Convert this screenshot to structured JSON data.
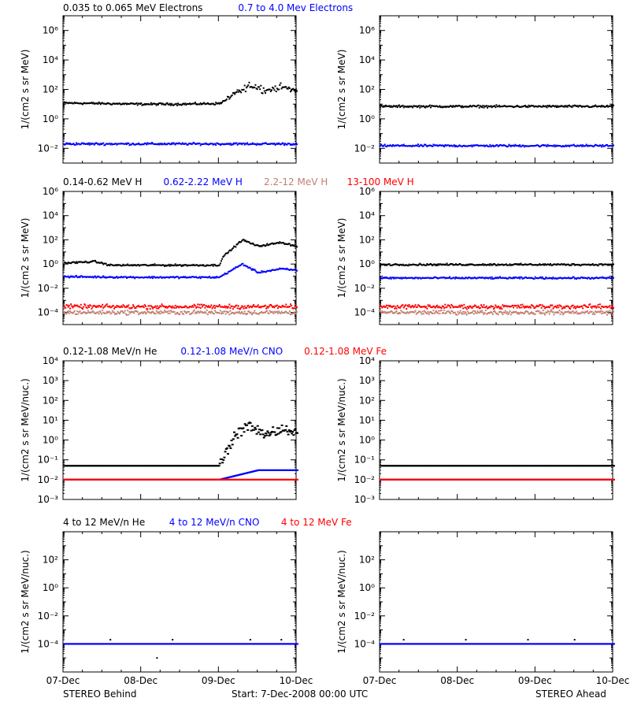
{
  "rows": [
    {
      "titles": [
        {
          "text": "0.035 to 0.065 MeV Electrons",
          "color": "#000000"
        },
        {
          "text": "0.7 to 4.0 Mev Electrons",
          "color": "#0000ff"
        }
      ]
    },
    {
      "titles": [
        {
          "text": "0.14-0.62 MeV H",
          "color": "#000000"
        },
        {
          "text": "0.62-2.22 MeV H",
          "color": "#0000ff"
        },
        {
          "text": "2.2-12 MeV H",
          "color": "#c08070"
        },
        {
          "text": "13-100 MeV H",
          "color": "#ff0000"
        }
      ]
    },
    {
      "titles": [
        {
          "text": "0.12-1.08 MeV/n He",
          "color": "#000000"
        },
        {
          "text": "0.12-1.08 MeV/n CNO",
          "color": "#0000ff"
        },
        {
          "text": "0.12-1.08 MeV Fe",
          "color": "#ff0000"
        }
      ]
    },
    {
      "titles": [
        {
          "text": "4 to 12 MeV/n He",
          "color": "#000000"
        },
        {
          "text": "4 to 12 MeV/n CNO",
          "color": "#0000ff"
        },
        {
          "text": "4 to 12 MeV Fe",
          "color": "#ff0000"
        }
      ]
    }
  ],
  "x_ticks": [
    "07-Dec",
    "08-Dec",
    "09-Dec",
    "10-Dec"
  ],
  "footer": {
    "left": "STEREO Behind",
    "center": "Start:  7-Dec-2008 00:00 UTC",
    "right": "STEREO Ahead"
  },
  "chart_data": [
    {
      "type": "scatter",
      "panel": "behind-electrons",
      "ylabel": "1/(cm2 s sr MeV)",
      "yscale": "log",
      "ylim": [
        0.001,
        10000000
      ],
      "x": [
        "07-Dec",
        "08-Dec",
        "09-Dec",
        "10-Dec"
      ],
      "series": [
        {
          "name": "0.035 to 0.065 MeV Electrons",
          "color": "#000000",
          "x": [
            0,
            0.5,
            1,
            1.5,
            2,
            2.1,
            2.4,
            2.6,
            2.8,
            3
          ],
          "y": [
            12,
            11,
            10,
            10,
            11,
            20,
            200,
            90,
            150,
            80
          ]
        },
        {
          "name": "0.7 to 4.0 Mev Electrons",
          "color": "#0000ff",
          "x": [
            0,
            1,
            2,
            3
          ],
          "y": [
            0.02,
            0.02,
            0.02,
            0.02
          ]
        }
      ]
    },
    {
      "type": "scatter",
      "panel": "ahead-electrons",
      "ylabel": "1/(cm2 s sr MeV)",
      "yscale": "log",
      "ylim": [
        0.001,
        10000000
      ],
      "x": [
        "07-Dec",
        "08-Dec",
        "09-Dec",
        "10-Dec"
      ],
      "series": [
        {
          "name": "0.035 to 0.065 MeV Electrons",
          "color": "#000000",
          "x": [
            0,
            1,
            2,
            3
          ],
          "y": [
            7,
            7,
            7,
            7
          ]
        },
        {
          "name": "0.7 to 4.0 Mev Electrons",
          "color": "#0000ff",
          "x": [
            0,
            1,
            2,
            3
          ],
          "y": [
            0.015,
            0.015,
            0.015,
            0.015
          ]
        }
      ]
    },
    {
      "type": "scatter",
      "panel": "behind-protons",
      "ylabel": "1/(cm2 s sr MeV)",
      "yscale": "log",
      "ylim": [
        1e-05,
        1000000
      ],
      "x": [
        "07-Dec",
        "08-Dec",
        "09-Dec",
        "10-Dec"
      ],
      "series": [
        {
          "name": "0.14-0.62 MeV H",
          "color": "#000000",
          "x": [
            0,
            0.4,
            0.6,
            1,
            1.5,
            2,
            2.05,
            2.3,
            2.5,
            2.8,
            3
          ],
          "y": [
            1.2,
            1.6,
            0.8,
            0.8,
            0.8,
            0.8,
            4,
            100,
            30,
            60,
            30
          ]
        },
        {
          "name": "0.62-2.22 MeV H",
          "color": "#0000ff",
          "x": [
            0,
            1,
            2,
            2.3,
            2.5,
            2.8,
            3
          ],
          "y": [
            0.09,
            0.08,
            0.08,
            1,
            0.2,
            0.4,
            0.3
          ]
        },
        {
          "name": "2.2-12 MeV H",
          "color": "#c08070",
          "x": [
            0,
            1,
            2,
            3
          ],
          "y": [
            0.0001,
            0.0001,
            0.0001,
            0.0001
          ]
        },
        {
          "name": "13-100 MeV H",
          "color": "#ff0000",
          "x": [
            0,
            1,
            2,
            3
          ],
          "y": [
            0.0003,
            0.0003,
            0.0003,
            0.0003
          ]
        }
      ]
    },
    {
      "type": "scatter",
      "panel": "ahead-protons",
      "ylabel": "1/(cm2 s sr MeV)",
      "yscale": "log",
      "ylim": [
        1e-05,
        1000000
      ],
      "x": [
        "07-Dec",
        "08-Dec",
        "09-Dec",
        "10-Dec"
      ],
      "series": [
        {
          "name": "0.14-0.62 MeV H",
          "color": "#000000",
          "x": [
            0,
            1,
            2,
            3
          ],
          "y": [
            0.9,
            0.9,
            0.9,
            0.9
          ]
        },
        {
          "name": "0.62-2.22 MeV H",
          "color": "#0000ff",
          "x": [
            0,
            1,
            2,
            3
          ],
          "y": [
            0.07,
            0.07,
            0.07,
            0.07
          ]
        },
        {
          "name": "2.2-12 MeV H",
          "color": "#c08070",
          "x": [
            0,
            1,
            2,
            3
          ],
          "y": [
            0.0001,
            0.0001,
            0.0001,
            0.0001
          ]
        },
        {
          "name": "13-100 MeV H",
          "color": "#ff0000",
          "x": [
            0,
            1,
            2,
            3
          ],
          "y": [
            0.0003,
            0.0003,
            0.0003,
            0.0003
          ]
        }
      ]
    },
    {
      "type": "scatter",
      "panel": "behind-low-ions",
      "ylabel": "1/(cm2 s sr MeV/nuc.)",
      "yscale": "log",
      "ylim": [
        0.001,
        10000
      ],
      "x": [
        "07-Dec",
        "08-Dec",
        "09-Dec",
        "10-Dec"
      ],
      "series": [
        {
          "name": "0.12-1.08 MeV/n He",
          "color": "#000000",
          "x": [
            0,
            1,
            2,
            2.2,
            2.4,
            2.6,
            2.8,
            3
          ],
          "y": [
            0.05,
            0.05,
            0.05,
            2,
            5,
            2,
            3,
            3
          ]
        },
        {
          "name": "0.12-1.08 MeV/n CNO",
          "color": "#0000ff",
          "x": [
            0,
            1,
            2,
            2.5,
            3
          ],
          "y": [
            0.01,
            0.01,
            0.01,
            0.03,
            0.03
          ]
        },
        {
          "name": "0.12-1.08 MeV Fe",
          "color": "#ff0000",
          "x": [
            0,
            1,
            2,
            3
          ],
          "y": [
            0.01,
            0.01,
            0.01,
            0.01
          ]
        }
      ]
    },
    {
      "type": "scatter",
      "panel": "ahead-low-ions",
      "ylabel": "1/(cm2 s sr MeV/nuc.)",
      "yscale": "log",
      "ylim": [
        0.001,
        10000
      ],
      "x": [
        "07-Dec",
        "08-Dec",
        "09-Dec",
        "10-Dec"
      ],
      "series": [
        {
          "name": "0.12-1.08 MeV/n He",
          "color": "#000000",
          "x": [
            0,
            1,
            2,
            3
          ],
          "y": [
            0.05,
            0.05,
            0.05,
            0.05
          ]
        },
        {
          "name": "0.12-1.08 MeV/n CNO",
          "color": "#0000ff",
          "x": [
            0,
            1,
            2,
            3
          ],
          "y": [
            0.01,
            0.01,
            0.01,
            0.01
          ]
        },
        {
          "name": "0.12-1.08 MeV Fe",
          "color": "#ff0000",
          "x": [
            0,
            1,
            2,
            3
          ],
          "y": [
            0.01,
            0.01,
            0.01,
            0.01
          ]
        }
      ]
    },
    {
      "type": "scatter",
      "panel": "behind-high-ions",
      "ylabel": "1/(cm2 s sr MeV/nuc.)",
      "yscale": "log",
      "ylim": [
        1e-06,
        10000
      ],
      "x": [
        "07-Dec",
        "08-Dec",
        "09-Dec",
        "10-Dec"
      ],
      "series": [
        {
          "name": "4 to 12 MeV/n He",
          "color": "#000000",
          "x": [
            0.6,
            1.2,
            1.4,
            2.4,
            2.8
          ],
          "y": [
            0.0002,
            1e-05,
            0.0002,
            0.0002,
            0.0002
          ]
        },
        {
          "name": "4 to 12 MeV/n CNO",
          "color": "#0000ff",
          "x": [
            0,
            1,
            2,
            3
          ],
          "y": [
            0.0001,
            0.0001,
            0.0001,
            0.0001
          ]
        },
        {
          "name": "4 to 12 MeV Fe",
          "color": "#ff0000",
          "x": [],
          "y": []
        }
      ]
    },
    {
      "type": "scatter",
      "panel": "ahead-high-ions",
      "ylabel": "1/(cm2 s sr MeV/nuc.)",
      "yscale": "log",
      "ylim": [
        1e-06,
        10000
      ],
      "x": [
        "07-Dec",
        "08-Dec",
        "09-Dec",
        "10-Dec"
      ],
      "series": [
        {
          "name": "4 to 12 MeV/n He",
          "color": "#000000",
          "x": [
            0.3,
            1.1,
            1.9,
            2.5
          ],
          "y": [
            0.0002,
            0.0002,
            0.0002,
            0.0002
          ]
        },
        {
          "name": "4 to 12 MeV/n CNO",
          "color": "#0000ff",
          "x": [
            0,
            1,
            2,
            3
          ],
          "y": [
            0.0001,
            0.0001,
            0.0001,
            0.0001
          ]
        },
        {
          "name": "4 to 12 MeV Fe",
          "color": "#ff0000",
          "x": [],
          "y": []
        }
      ]
    }
  ]
}
